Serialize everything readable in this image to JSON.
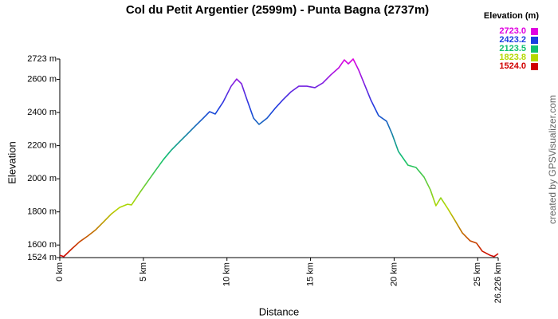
{
  "chart_data": {
    "type": "line",
    "title": "Col du Petit Argentier (2599m) - Punta Bagna (2737m)",
    "x_label": "Distance",
    "y_label": "Elevation",
    "credit": "created by GPSVisualizer.com",
    "x": [
      0,
      0.24,
      0.72,
      1.19,
      1.67,
      2.15,
      2.62,
      3.1,
      3.58,
      4.05,
      4.29,
      4.77,
      5.24,
      5.72,
      6.2,
      6.68,
      7.15,
      7.63,
      8.1,
      8.58,
      8.96,
      9.3,
      9.77,
      10.25,
      10.58,
      10.87,
      11.2,
      11.59,
      11.92,
      12.4,
      12.87,
      13.35,
      13.83,
      14.3,
      14.78,
      15.26,
      15.73,
      16.21,
      16.69,
      17.02,
      17.26,
      17.55,
      17.88,
      18.21,
      18.6,
      19.07,
      19.55,
      19.88,
      20.26,
      20.83,
      21.31,
      21.79,
      22.17,
      22.5,
      22.79,
      23.22,
      23.6,
      24.08,
      24.55,
      24.93,
      25.27,
      25.74,
      25.98,
      26.226
    ],
    "values": [
      1538,
      1530,
      1577,
      1620,
      1654,
      1692,
      1740,
      1789,
      1827,
      1846,
      1842,
      1914,
      1981,
      2049,
      2116,
      2174,
      2222,
      2270,
      2318,
      2366,
      2405,
      2391,
      2463,
      2559,
      2602,
      2574,
      2477,
      2366,
      2328,
      2366,
      2424,
      2477,
      2525,
      2559,
      2559,
      2550,
      2578,
      2627,
      2670,
      2718,
      2694,
      2723,
      2656,
      2574,
      2477,
      2381,
      2347,
      2270,
      2164,
      2082,
      2068,
      2010,
      1933,
      1837,
      1885,
      1818,
      1755,
      1673,
      1625,
      1611,
      1563,
      1538,
      1530,
      1548
    ],
    "xlim": [
      0,
      26.226
    ],
    "xticks": [
      {
        "value": 0,
        "label": "0 km"
      },
      {
        "value": 5,
        "label": "5 km"
      },
      {
        "value": 10,
        "label": "10 km"
      },
      {
        "value": 15,
        "label": "15 km"
      },
      {
        "value": 20,
        "label": "20 km"
      },
      {
        "value": 25,
        "label": "25 km"
      },
      {
        "value": 26.226,
        "label": "26.226 km"
      }
    ],
    "ylim": [
      1524,
      2723
    ],
    "yticks": [
      {
        "value": 1524,
        "label": "1524 m"
      },
      {
        "value": 1600,
        "label": "1600 m"
      },
      {
        "value": 1800,
        "label": "1800 m"
      },
      {
        "value": 2000,
        "label": "2000 m"
      },
      {
        "value": 2200,
        "label": "2200 m"
      },
      {
        "value": 2400,
        "label": "2400 m"
      },
      {
        "value": 2600,
        "label": "2600 m"
      },
      {
        "value": 2723,
        "label": "2723 m"
      }
    ],
    "grid": false,
    "colorscale": {
      "title": "Elevation (m)",
      "stops": [
        {
          "value": 2723.0,
          "label": "2723.0",
          "color": "#e000e0"
        },
        {
          "value": 2423.2,
          "label": "2423.2",
          "color": "#1a3ee0"
        },
        {
          "value": 2123.5,
          "label": "2123.5",
          "color": "#10c070"
        },
        {
          "value": 1823.8,
          "label": "1823.8",
          "color": "#b4d800"
        },
        {
          "value": 1524.0,
          "label": "1524.0",
          "color": "#d00000"
        }
      ]
    }
  }
}
